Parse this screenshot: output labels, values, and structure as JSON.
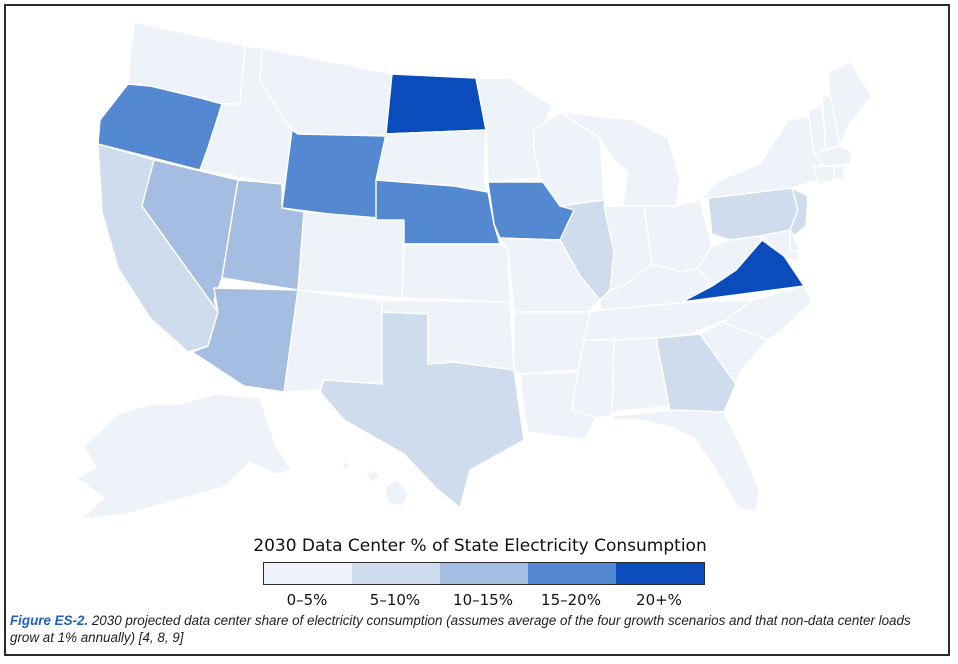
{
  "legend": {
    "title": "2030 Data Center % of State Electricity Consumption",
    "bins": [
      {
        "label": "0–5%",
        "color": "#eef2f9"
      },
      {
        "label": "5–10%",
        "color": "#cfdcee"
      },
      {
        "label": "10–15%",
        "color": "#a6bde2"
      },
      {
        "label": "15–20%",
        "color": "#5488d0"
      },
      {
        "label": "20+%",
        "color": "#0b4cbd"
      }
    ]
  },
  "caption": {
    "figure_label": "Figure ES-2.",
    "text": " 2030 projected data center share of electricity consumption (assumes average of the four growth scenarios and that non-data center loads grow at 1% annually) [4, 8, 9]"
  },
  "states": {
    "WA": 0,
    "OR": 3,
    "CA": 1,
    "ID": 0,
    "NV": 2,
    "MT": 0,
    "WY": 3,
    "UT": 2,
    "AZ": 2,
    "CO": 0,
    "NM": 0,
    "ND": 4,
    "SD": 0,
    "NE": 3,
    "KS": 0,
    "OK": 0,
    "TX": 1,
    "MN": 0,
    "IA": 3,
    "MO": 0,
    "AR": 0,
    "LA": 0,
    "WI": 0,
    "IL": 1,
    "MI": 0,
    "IN": 0,
    "OH": 0,
    "KY": 0,
    "TN": 0,
    "MS": 0,
    "AL": 0,
    "GA": 1,
    "FL": 0,
    "SC": 0,
    "NC": 0,
    "VA": 4,
    "WV": 0,
    "PA": 1,
    "NY": 0,
    "NJ": 1,
    "DE": 0,
    "MD": 0,
    "VT": 0,
    "NH": 0,
    "ME": 0,
    "MA": 0,
    "CT": 0,
    "RI": 0,
    "AK": 0,
    "HI": 0
  }
}
